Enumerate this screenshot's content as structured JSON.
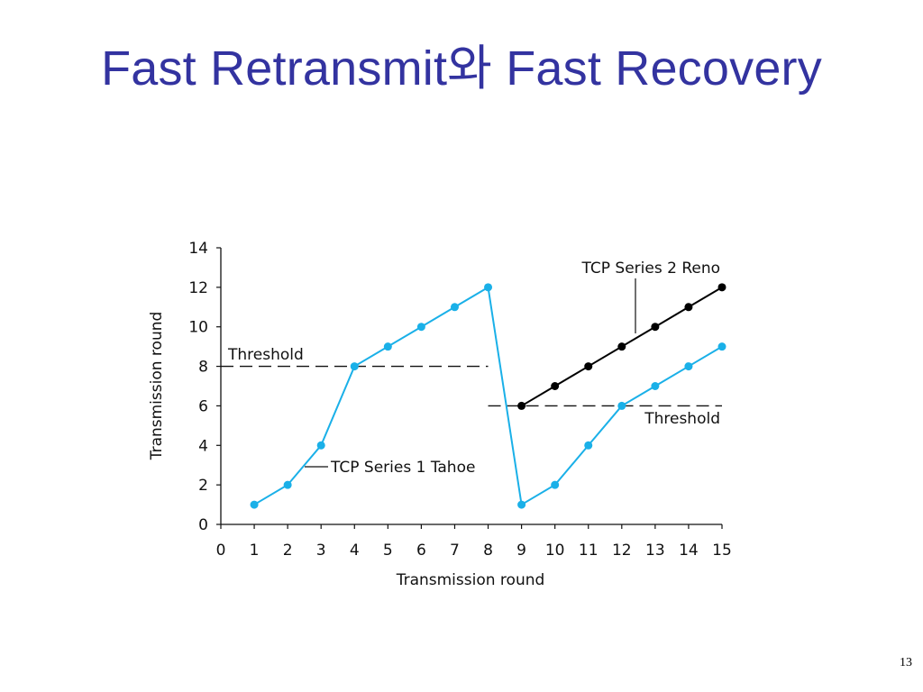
{
  "slide": {
    "title": "Fast Retransmit와 Fast Recovery",
    "page_number": "13"
  },
  "chart_data": {
    "type": "line",
    "xlabel": "Transmission round",
    "ylabel": "Transmission round",
    "xlim": [
      0,
      15
    ],
    "ylim": [
      0,
      14
    ],
    "x_ticks": [
      "0",
      "1",
      "2",
      "3",
      "4",
      "5",
      "6",
      "7",
      "8",
      "9",
      "10",
      "11",
      "12",
      "13",
      "14",
      "15"
    ],
    "y_ticks": [
      "0",
      "2",
      "4",
      "6",
      "8",
      "10",
      "12",
      "14"
    ],
    "grid": false,
    "series": [
      {
        "name": "TCP Series 1 Tahoe",
        "color": "#1ab0e8",
        "x": [
          1,
          2,
          3,
          4,
          5,
          6,
          7,
          8,
          9,
          10,
          11,
          12,
          13,
          14,
          15
        ],
        "y": [
          1,
          2,
          4,
          8,
          9,
          10,
          11,
          12,
          1,
          2,
          4,
          6,
          7,
          8,
          9
        ]
      },
      {
        "name": "TCP Series 2 Reno",
        "color": "#000000",
        "x": [
          9,
          10,
          11,
          12,
          13,
          14,
          15
        ],
        "y": [
          6,
          7,
          8,
          9,
          10,
          11,
          12
        ]
      }
    ],
    "thresholds": [
      {
        "label": "Threshold",
        "y": 8,
        "x_range": [
          0,
          8
        ]
      },
      {
        "label": "Threshold",
        "y": 6,
        "x_range": [
          8,
          15
        ]
      }
    ]
  }
}
